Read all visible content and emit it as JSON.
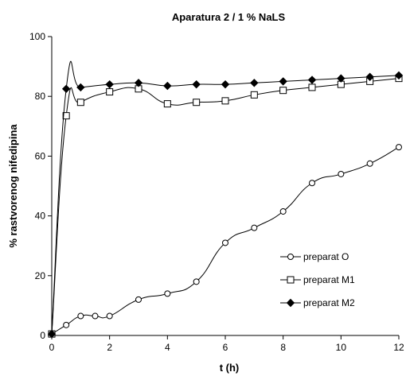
{
  "chart_data": {
    "type": "line",
    "title": "Aparatura 2 / 1 % NaLS",
    "xlabel": "t (h)",
    "ylabel": "% rastvorenog nifedipina",
    "xlim": [
      0,
      12
    ],
    "ylim": [
      0,
      100
    ],
    "x_ticks": [
      "0",
      "2",
      "4",
      "6",
      "8",
      "10",
      "12"
    ],
    "y_ticks": [
      "0",
      "20",
      "40",
      "60",
      "80",
      "100"
    ],
    "grid": false,
    "legend_position": "right",
    "series": [
      {
        "name": "preparat O",
        "marker": "open-circle",
        "color": "#000000",
        "x": [
          0,
          0.5,
          1,
          1.5,
          2,
          3,
          4,
          5,
          6,
          7,
          8,
          9,
          10,
          11,
          12
        ],
        "y": [
          0.5,
          3.5,
          6.5,
          6.5,
          6.5,
          12,
          14,
          18,
          31,
          36,
          41.5,
          51,
          54,
          57.5,
          63
        ]
      },
      {
        "name": "preparat M1",
        "marker": "open-square",
        "color": "#000000",
        "x": [
          0,
          0.5,
          1,
          2,
          3,
          4,
          5,
          6,
          7,
          8,
          9,
          10,
          11,
          12
        ],
        "y": [
          0.5,
          73.5,
          78,
          81.5,
          82.5,
          77.5,
          78,
          78.5,
          80.5,
          82,
          83,
          84,
          85,
          86
        ]
      },
      {
        "name": "preparat M2",
        "marker": "filled-diamond",
        "color": "#000000",
        "x": [
          0,
          0.5,
          1,
          2,
          3,
          4,
          5,
          6,
          7,
          8,
          9,
          10,
          11,
          12
        ],
        "y": [
          0.5,
          82.5,
          83,
          84,
          84.5,
          83.5,
          84,
          84,
          84.5,
          85,
          85.5,
          86,
          86.5,
          87
        ]
      }
    ]
  }
}
